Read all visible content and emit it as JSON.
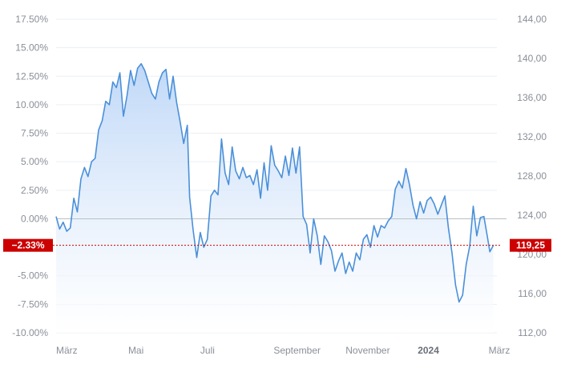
{
  "chart_data": {
    "type": "area",
    "title": "",
    "xlabel": "",
    "ylabel": "",
    "colors": {
      "line": "#4a90d9",
      "fill": "#d6e6fb",
      "tag": "#cc0000",
      "zero": "#b8c0c8",
      "grid": "#eceff3",
      "tick": "#8a8f98"
    },
    "grid": true,
    "left_axis": {
      "unit": "percent",
      "range": [
        -10,
        17.5
      ],
      "ticks": [
        17.5,
        15,
        12.5,
        10,
        7.5,
        5,
        2.5,
        0,
        -5,
        -7.5,
        -10
      ],
      "tick_labels": [
        "17.50%",
        "15.00%",
        "12.50%",
        "10.00%",
        "7.50%",
        "5.00%",
        "2.50%",
        "0.00%",
        "-5.00%",
        "-7.50%",
        "-10.00%"
      ]
    },
    "right_axis": {
      "range": [
        112,
        144
      ],
      "ticks": [
        144,
        140,
        136,
        132,
        128,
        124,
        120,
        116,
        112
      ],
      "tick_labels": [
        "144,00",
        "140,00",
        "136,00",
        "132,00",
        "128,00",
        "124,00",
        "120,00",
        "116,00",
        "112,00"
      ]
    },
    "x_axis": {
      "ticks": [
        {
          "label": "März",
          "x": "2023-03-01",
          "bold": false
        },
        {
          "label": "Mai",
          "x": "2023-05-01",
          "bold": false
        },
        {
          "label": "Juli",
          "x": "2023-07-01",
          "bold": false
        },
        {
          "label": "September",
          "x": "2023-09-01",
          "bold": false
        },
        {
          "label": "November",
          "x": "2023-11-01",
          "bold": false
        },
        {
          "label": "2024",
          "x": "2024-01-01",
          "bold": true
        },
        {
          "label": "März",
          "x": "2024-03-01",
          "bold": false
        }
      ]
    },
    "current": {
      "percent_label": "−2.33%",
      "price_label": "119,25",
      "percent": -2.33,
      "price": 119.25
    },
    "series": [
      {
        "values": [
          [
            "2023-03-01",
            0.2
          ],
          [
            "2023-03-04",
            -0.9
          ],
          [
            "2023-03-07",
            -0.3
          ],
          [
            "2023-03-10",
            -1.1
          ],
          [
            "2023-03-13",
            -0.8
          ],
          [
            "2023-03-16",
            1.8
          ],
          [
            "2023-03-19",
            0.6
          ],
          [
            "2023-03-22",
            3.5
          ],
          [
            "2023-03-25",
            4.5
          ],
          [
            "2023-03-28",
            3.7
          ],
          [
            "2023-03-31",
            5.0
          ],
          [
            "2023-04-03",
            5.3
          ],
          [
            "2023-04-06",
            7.8
          ],
          [
            "2023-04-09",
            8.6
          ],
          [
            "2023-04-12",
            10.3
          ],
          [
            "2023-04-15",
            10.0
          ],
          [
            "2023-04-18",
            12.0
          ],
          [
            "2023-04-21",
            11.5
          ],
          [
            "2023-04-24",
            12.8
          ],
          [
            "2023-04-27",
            9.0
          ],
          [
            "2023-04-30",
            10.8
          ],
          [
            "2023-05-03",
            13.0
          ],
          [
            "2023-05-06",
            11.7
          ],
          [
            "2023-05-09",
            13.2
          ],
          [
            "2023-05-12",
            13.6
          ],
          [
            "2023-05-15",
            13.0
          ],
          [
            "2023-05-18",
            12.0
          ],
          [
            "2023-05-21",
            11.0
          ],
          [
            "2023-05-24",
            10.5
          ],
          [
            "2023-05-27",
            12.0
          ],
          [
            "2023-05-30",
            12.8
          ],
          [
            "2023-06-02",
            13.1
          ],
          [
            "2023-06-05",
            10.5
          ],
          [
            "2023-06-08",
            12.5
          ],
          [
            "2023-06-11",
            10.2
          ],
          [
            "2023-06-14",
            8.5
          ],
          [
            "2023-06-17",
            6.6
          ],
          [
            "2023-06-20",
            8.2
          ],
          [
            "2023-06-22",
            1.9
          ],
          [
            "2023-06-25",
            -1.0
          ],
          [
            "2023-06-28",
            -3.4
          ],
          [
            "2023-07-01",
            -1.2
          ],
          [
            "2023-07-04",
            -2.5
          ],
          [
            "2023-07-07",
            -1.8
          ],
          [
            "2023-07-10",
            2.0
          ],
          [
            "2023-07-13",
            2.5
          ],
          [
            "2023-07-16",
            2.1
          ],
          [
            "2023-07-19",
            7.0
          ],
          [
            "2023-07-22",
            4.0
          ],
          [
            "2023-07-25",
            3.0
          ],
          [
            "2023-07-28",
            6.3
          ],
          [
            "2023-07-31",
            4.2
          ],
          [
            "2023-08-03",
            3.5
          ],
          [
            "2023-08-06",
            4.5
          ],
          [
            "2023-08-09",
            3.6
          ],
          [
            "2023-08-12",
            3.8
          ],
          [
            "2023-08-15",
            3.0
          ],
          [
            "2023-08-18",
            4.3
          ],
          [
            "2023-08-21",
            1.8
          ],
          [
            "2023-08-24",
            4.9
          ],
          [
            "2023-08-27",
            2.5
          ],
          [
            "2023-08-30",
            6.4
          ],
          [
            "2023-09-02",
            4.7
          ],
          [
            "2023-09-05",
            4.2
          ],
          [
            "2023-09-08",
            3.6
          ],
          [
            "2023-09-11",
            5.5
          ],
          [
            "2023-09-14",
            3.8
          ],
          [
            "2023-09-17",
            6.2
          ],
          [
            "2023-09-20",
            4.0
          ],
          [
            "2023-09-23",
            6.3
          ],
          [
            "2023-09-26",
            0.2
          ],
          [
            "2023-09-29",
            -0.5
          ],
          [
            "2023-10-02",
            -3.0
          ],
          [
            "2023-10-05",
            0.0
          ],
          [
            "2023-10-08",
            -1.5
          ],
          [
            "2023-10-11",
            -4.0
          ],
          [
            "2023-10-14",
            -1.5
          ],
          [
            "2023-10-17",
            -2.0
          ],
          [
            "2023-10-20",
            -2.8
          ],
          [
            "2023-10-23",
            -4.6
          ],
          [
            "2023-10-26",
            -3.7
          ],
          [
            "2023-10-29",
            -3.0
          ],
          [
            "2023-11-01",
            -4.8
          ],
          [
            "2023-11-04",
            -3.8
          ],
          [
            "2023-11-07",
            -4.6
          ],
          [
            "2023-11-10",
            -3.0
          ],
          [
            "2023-11-13",
            -3.6
          ],
          [
            "2023-11-16",
            -1.8
          ],
          [
            "2023-11-19",
            -1.4
          ],
          [
            "2023-11-22",
            -2.5
          ],
          [
            "2023-11-25",
            -0.6
          ],
          [
            "2023-11-28",
            -1.6
          ],
          [
            "2023-12-01",
            -0.6
          ],
          [
            "2023-12-04",
            -0.8
          ],
          [
            "2023-12-07",
            -0.2
          ],
          [
            "2023-12-10",
            0.2
          ],
          [
            "2023-12-13",
            2.6
          ],
          [
            "2023-12-16",
            3.3
          ],
          [
            "2023-12-19",
            2.7
          ],
          [
            "2023-12-22",
            4.4
          ],
          [
            "2023-12-25",
            3.0
          ],
          [
            "2023-12-28",
            1.2
          ],
          [
            "2023-12-31",
            0.0
          ],
          [
            "2024-01-03",
            1.5
          ],
          [
            "2024-01-06",
            0.5
          ],
          [
            "2024-01-09",
            1.6
          ],
          [
            "2024-01-12",
            1.9
          ],
          [
            "2024-01-15",
            1.3
          ],
          [
            "2024-01-18",
            0.4
          ],
          [
            "2024-01-21",
            1.2
          ],
          [
            "2024-01-24",
            2.0
          ],
          [
            "2024-01-27",
            -0.8
          ],
          [
            "2024-01-30",
            -3.0
          ],
          [
            "2024-02-02",
            -5.8
          ],
          [
            "2024-02-05",
            -7.3
          ],
          [
            "2024-02-08",
            -6.7
          ],
          [
            "2024-02-11",
            -4.0
          ],
          [
            "2024-02-14",
            -2.4
          ],
          [
            "2024-02-17",
            1.1
          ],
          [
            "2024-02-20",
            -1.5
          ],
          [
            "2024-02-23",
            0.1
          ],
          [
            "2024-02-26",
            0.2
          ],
          [
            "2024-02-29",
            -1.6
          ],
          [
            "2024-03-02",
            -2.9
          ],
          [
            "2024-03-05",
            -2.33
          ]
        ]
      }
    ]
  }
}
